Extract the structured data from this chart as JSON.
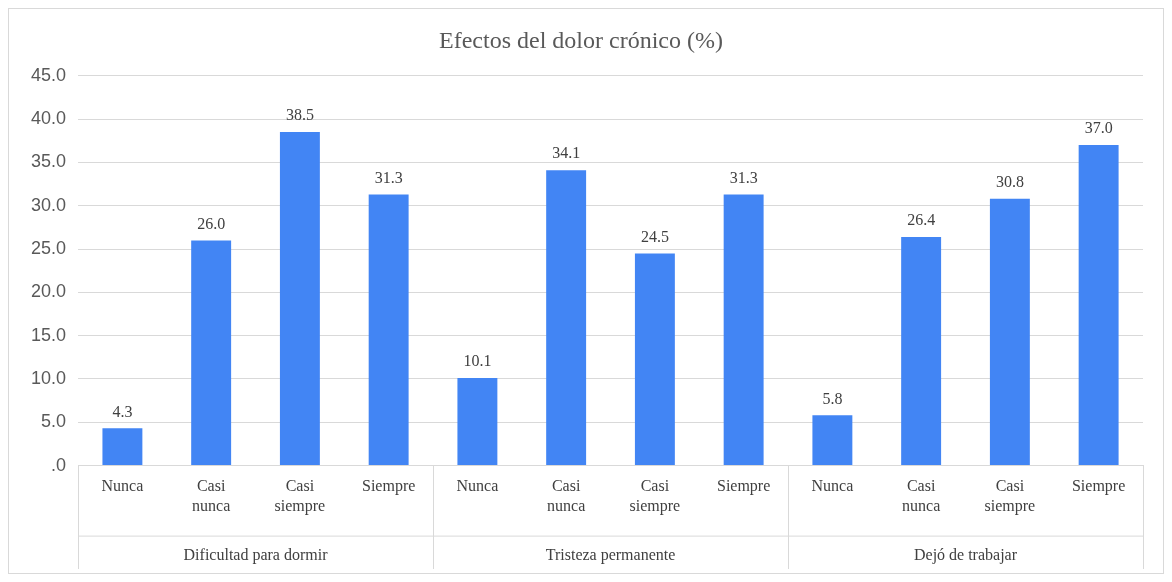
{
  "chart_data": {
    "type": "bar",
    "title": "Efectos del dolor crónico (%)",
    "categories": [
      "Nunca",
      "Casi nunca",
      "Casi siempre",
      "Siempre",
      "Nunca",
      "Casi nunca",
      "Casi siempre",
      "Siempre",
      "Nunca",
      "Casi nunca",
      "Casi siempre",
      "Siempre"
    ],
    "values": [
      4.3,
      26.0,
      38.5,
      31.3,
      10.1,
      34.1,
      24.5,
      31.3,
      5.8,
      26.4,
      30.8,
      37.0
    ],
    "value_labels": [
      "4.3",
      "26.0",
      "38.5",
      "31.3",
      "10.1",
      "34.1",
      "24.5",
      "31.3",
      "5.8",
      "26.4",
      "30.8",
      "37.0"
    ],
    "color": "#4285f4",
    "annotations": [
      "Dificultad para dormir",
      "Tristeza permanente",
      "Dejó de trabajar"
    ],
    "ylim": [
      0,
      45
    ],
    "yticks": [
      {
        "value": 0,
        "label": ".0"
      },
      {
        "value": 5,
        "label": "5.0"
      },
      {
        "value": 10,
        "label": "10.0"
      },
      {
        "value": 15,
        "label": "15.0"
      },
      {
        "value": 20,
        "label": "20.0"
      },
      {
        "value": 25,
        "label": "25.0"
      },
      {
        "value": 30,
        "label": "30.0"
      },
      {
        "value": 35,
        "label": "35.0"
      },
      {
        "value": 40,
        "label": "40.0"
      },
      {
        "value": 45,
        "label": "45.0"
      }
    ],
    "grid": "y",
    "legend": false
  }
}
